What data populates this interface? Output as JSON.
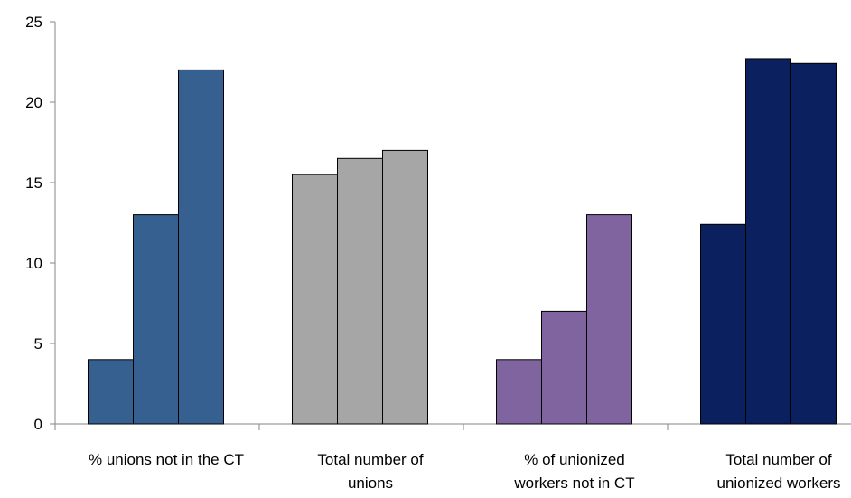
{
  "chart_data": {
    "type": "bar",
    "title": "",
    "xlabel": "",
    "ylabel": "",
    "ylim": [
      0,
      25
    ],
    "yticks": [
      0,
      5,
      10,
      15,
      20,
      25
    ],
    "grid": false,
    "legend": "none",
    "categories": [
      {
        "label_lines": [
          "% unions not in the CT"
        ],
        "color": "#36608f",
        "values": [
          4,
          13,
          22
        ]
      },
      {
        "label_lines": [
          "Total number of",
          "unions"
        ],
        "color": "#a6a6a6",
        "values": [
          15.5,
          16.5,
          17
        ]
      },
      {
        "label_lines": [
          "% of unionized",
          "workers not in CT"
        ],
        "color": "#8064a0",
        "values": [
          4,
          7,
          13
        ]
      },
      {
        "label_lines": [
          "Total number of",
          "unionized workers"
        ],
        "color": "#0b215f",
        "values": [
          12.4,
          22.7,
          22.4
        ]
      }
    ]
  }
}
